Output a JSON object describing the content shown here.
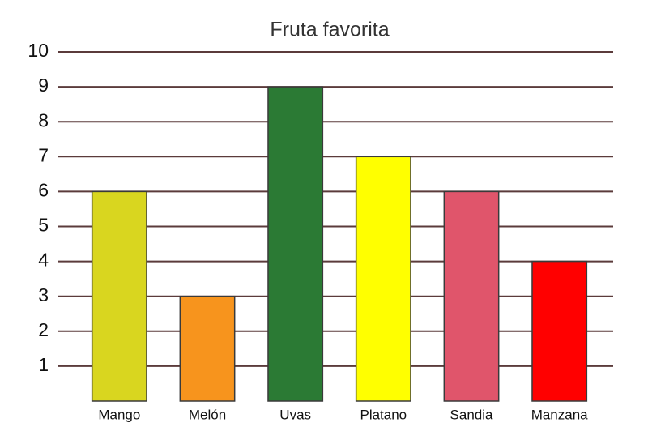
{
  "chart_data": {
    "type": "bar",
    "title": "Fruta favorita",
    "categories": [
      "Mango",
      "Melón",
      "Uvas",
      "Platano",
      "Sandia",
      "Manzana"
    ],
    "values": [
      6,
      3,
      9,
      7,
      6,
      4
    ],
    "colors": [
      "#d9d61f",
      "#f7941d",
      "#2b7a34",
      "#ffff00",
      "#e0556b",
      "#ff0000"
    ],
    "ylim": [
      0,
      10
    ],
    "yticks": [
      1,
      2,
      3,
      4,
      5,
      6,
      7,
      8,
      9,
      10
    ],
    "grid": true
  }
}
